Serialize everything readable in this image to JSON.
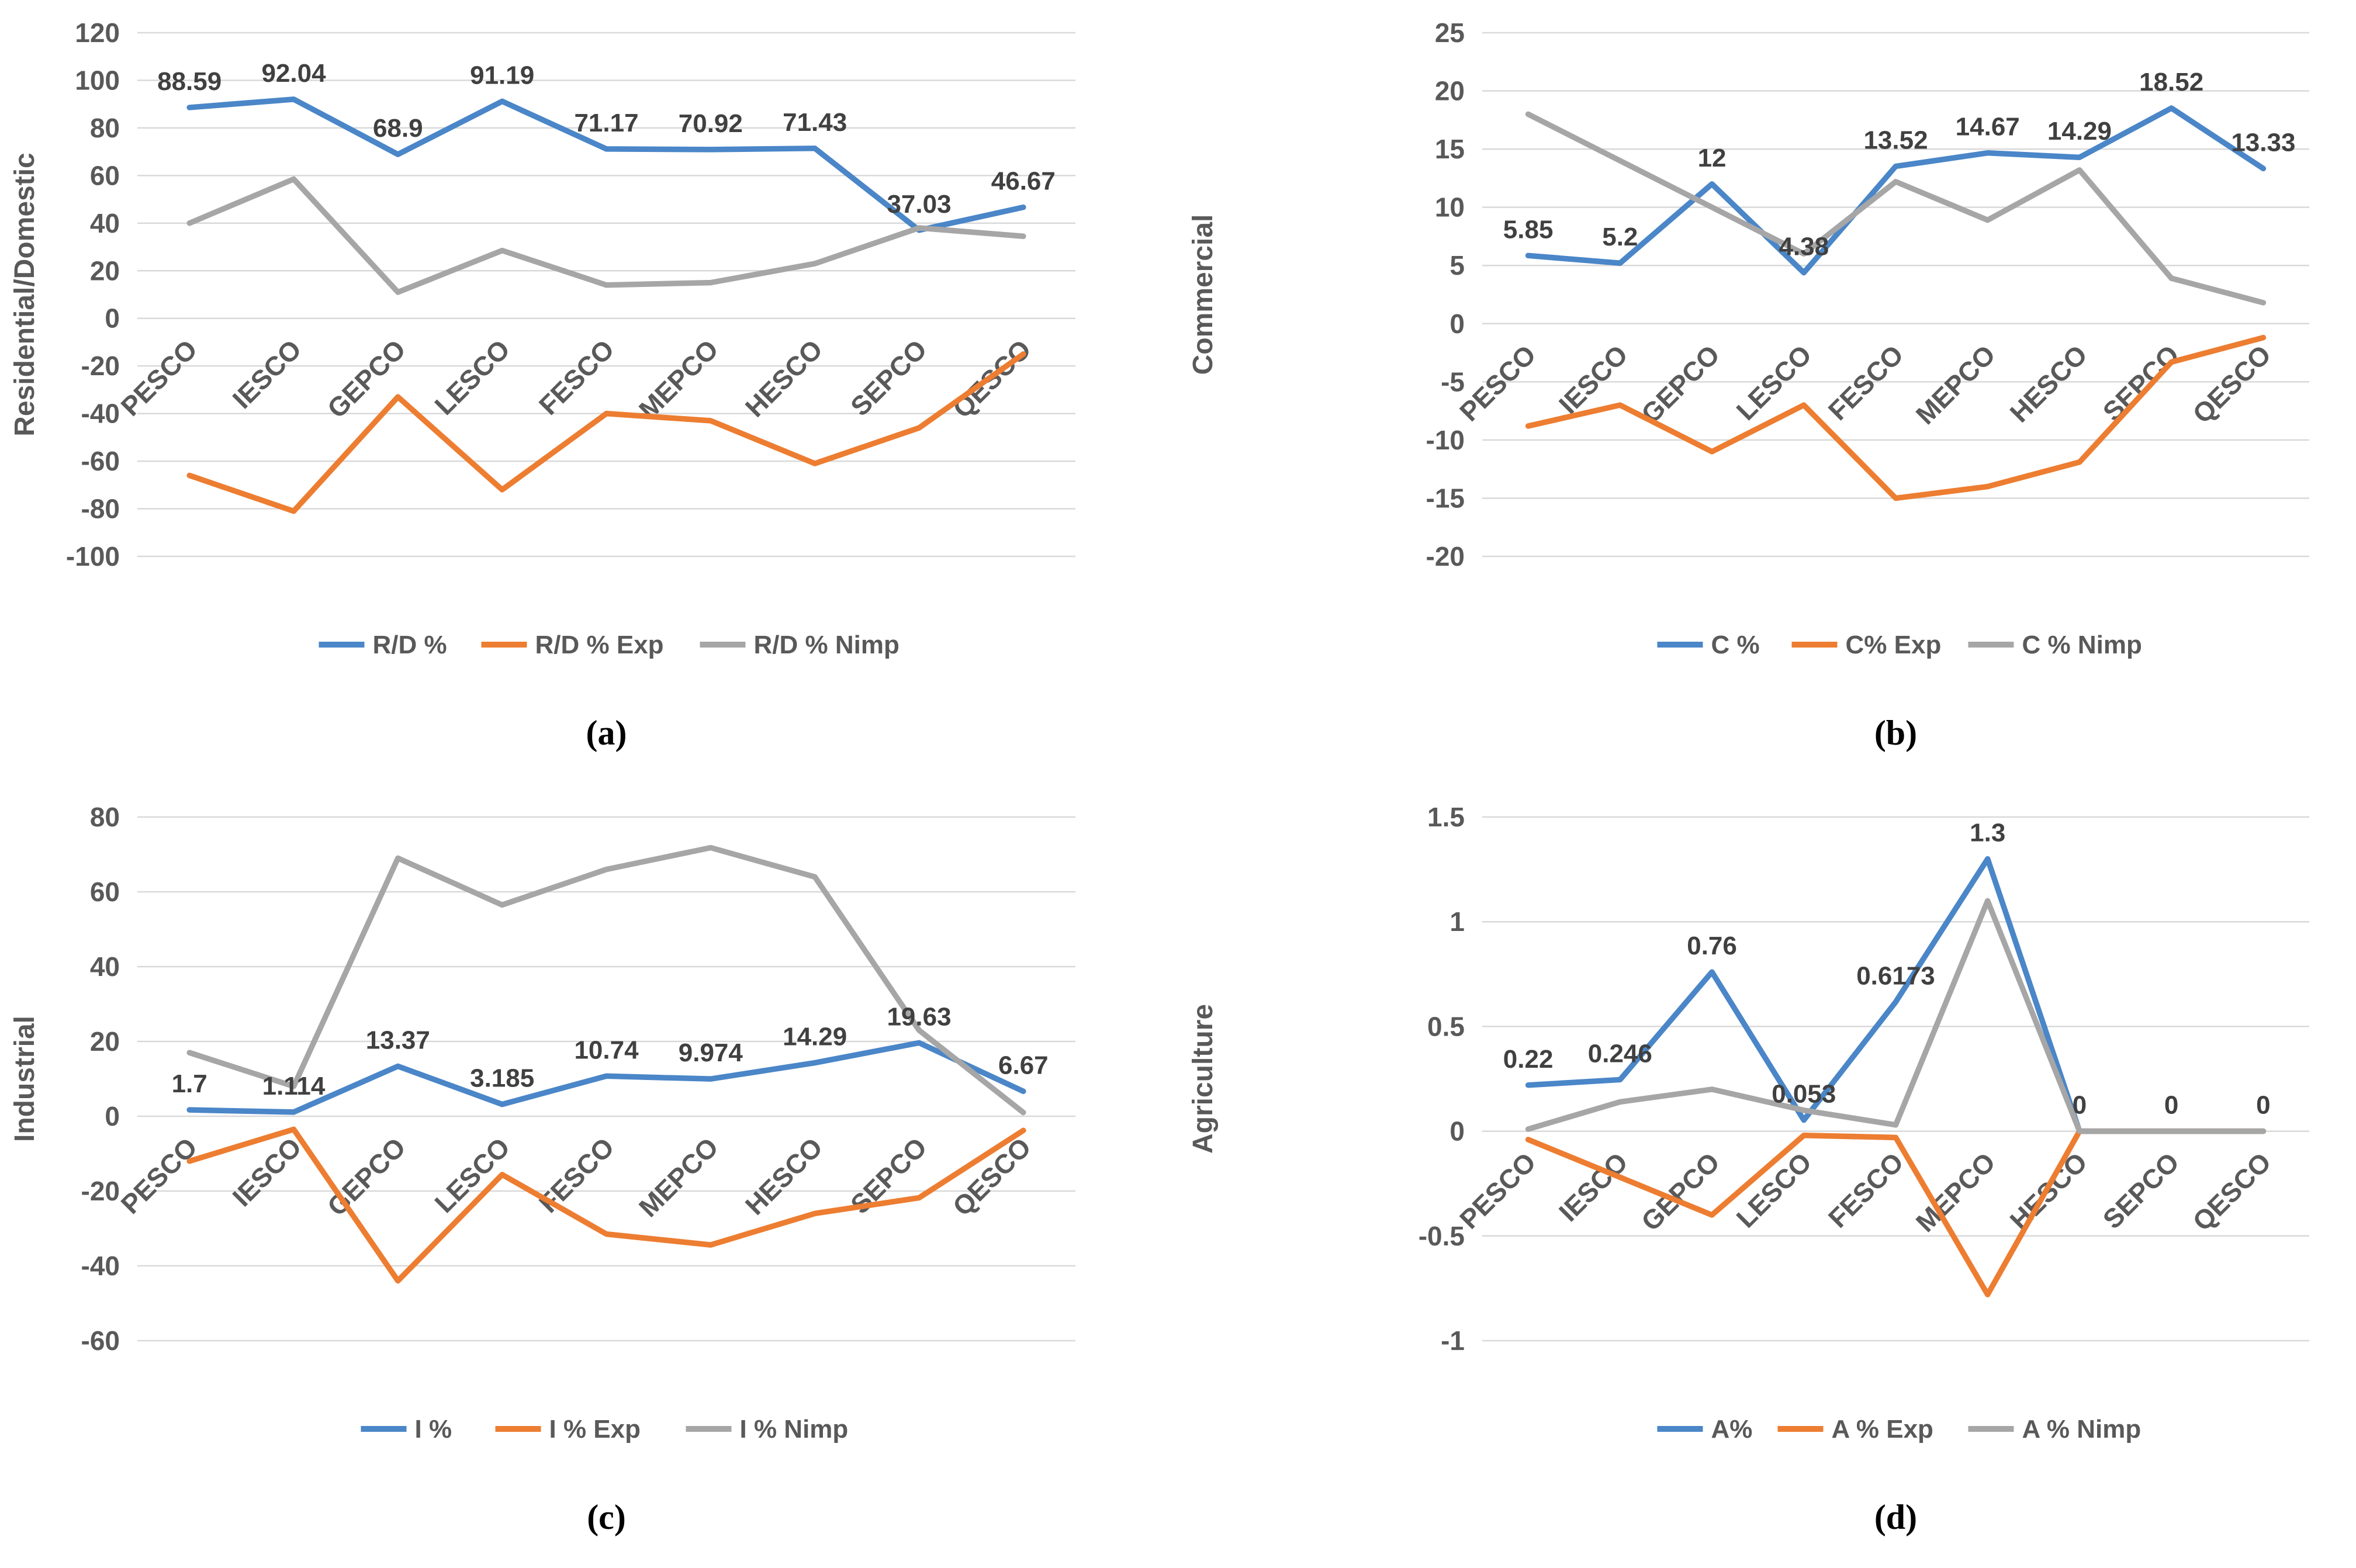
{
  "page": {
    "background": "#ffffff"
  },
  "colors": {
    "blue": "#4A86C8",
    "orange": "#ED7D31",
    "gray": "#A6A6A6",
    "gridline": "#D9D9D9",
    "axis_text": "#595959",
    "data_label": "#404040",
    "legend_text": "#595959"
  },
  "categories": [
    "PESCO",
    "IESCO",
    "GEPCO",
    "LESCO",
    "FESCO",
    "MEPCO",
    "HESCO",
    "SEPCO",
    "QESCO"
  ],
  "chart_data": [
    {
      "type": "line",
      "caption": "(a)",
      "ylabel": "Residential/Domestic",
      "ylim": [
        -100,
        120
      ],
      "ytick_step": 20,
      "grid": true,
      "legend_position": "bottom",
      "categories": [
        "PESCO",
        "IESCO",
        "GEPCO",
        "LESCO",
        "FESCO",
        "MEPCO",
        "HESCO",
        "SEPCO",
        "QESCO"
      ],
      "series": [
        {
          "name": "R/D %",
          "color": "blue",
          "values": [
            88.59,
            92.04,
            68.9,
            91.19,
            71.17,
            70.92,
            71.43,
            37.03,
            46.67
          ],
          "labels": [
            "88.59",
            "92.04",
            "68.9",
            "91.19",
            "71.17",
            "70.92",
            "71.43",
            "37.03",
            "46.67"
          ]
        },
        {
          "name": "R/D % Exp",
          "color": "orange",
          "values": [
            -66,
            -81,
            -33,
            -72,
            -40,
            -43,
            -61,
            -46,
            -15
          ]
        },
        {
          "name": "R/D % Nimp",
          "color": "gray",
          "values": [
            40,
            58.5,
            11,
            28.5,
            14,
            15,
            23,
            38,
            34.5
          ]
        }
      ]
    },
    {
      "type": "line",
      "caption": "(b)",
      "ylabel": "Commercial",
      "ylim": [
        -20,
        25
      ],
      "ytick_step": 5,
      "grid": true,
      "legend_position": "bottom",
      "categories": [
        "PESCO",
        "IESCO",
        "GEPCO",
        "LESCO",
        "FESCO",
        "MEPCO",
        "HESCO",
        "SEPCO",
        "QESCO"
      ],
      "series": [
        {
          "name": "C %",
          "color": "blue",
          "values": [
            5.85,
            5.2,
            12,
            4.38,
            13.52,
            14.67,
            14.29,
            18.52,
            13.33
          ],
          "labels": [
            "5.85",
            "5.2",
            "12",
            "4.38",
            "13.52",
            "14.67",
            "14.29",
            "18.52",
            "13.33"
          ]
        },
        {
          "name": "C% Exp",
          "color": "orange",
          "values": [
            -8.8,
            -7,
            -11,
            -7,
            -15,
            -14,
            -11.9,
            -3.3,
            -1.2
          ]
        },
        {
          "name": "C % Nimp",
          "color": "gray",
          "values": [
            18,
            14,
            10,
            6,
            12.2,
            8.9,
            13.2,
            3.9,
            1.8
          ]
        }
      ]
    },
    {
      "type": "line",
      "caption": "(c)",
      "ylabel": "Industrial",
      "ylim": [
        -60,
        80
      ],
      "ytick_step": 20,
      "grid": true,
      "legend_position": "bottom",
      "categories": [
        "PESCO",
        "IESCO",
        "GEPCO",
        "LESCO",
        "FESCO",
        "MEPCO",
        "HESCO",
        "SEPCO",
        "QESCO"
      ],
      "series": [
        {
          "name": "I %",
          "color": "blue",
          "values": [
            1.7,
            1.114,
            13.37,
            3.185,
            10.74,
            9.974,
            14.29,
            19.63,
            6.67
          ],
          "labels": [
            "1.7",
            "1.114",
            "13.37",
            "3.185",
            "10.74",
            "9.974",
            "14.29",
            "19.63",
            "6.67"
          ]
        },
        {
          "name": "I % Exp",
          "color": "orange",
          "values": [
            -12,
            -3.5,
            -44,
            -15.6,
            -31.5,
            -34.4,
            -26,
            -21.8,
            -3.8
          ]
        },
        {
          "name": "I % Nimp",
          "color": "gray",
          "values": [
            17,
            8,
            69,
            56.5,
            66,
            71.8,
            64,
            23,
            1
          ]
        }
      ]
    },
    {
      "type": "line",
      "caption": "(d)",
      "ylabel": "Agriculture",
      "ylim": [
        -1,
        1.5
      ],
      "ytick_step": 0.5,
      "grid": true,
      "legend_position": "bottom",
      "categories": [
        "PESCO",
        "IESCO",
        "GEPCO",
        "LESCO",
        "FESCO",
        "MEPCO",
        "HESCO",
        "SEPCO",
        "QESCO"
      ],
      "series": [
        {
          "name": "A%",
          "color": "blue",
          "values": [
            0.22,
            0.246,
            0.76,
            0.053,
            0.6173,
            1.3,
            0,
            0,
            0
          ],
          "labels": [
            "0.22",
            "0.246",
            "0.76",
            "0.053",
            "0.6173",
            "1.3",
            "0",
            "0",
            "0"
          ]
        },
        {
          "name": "A % Exp",
          "color": "orange",
          "values": [
            -0.04,
            -0.22,
            -0.4,
            -0.02,
            -0.03,
            -0.78,
            0,
            0,
            0
          ]
        },
        {
          "name": "A % Nimp",
          "color": "gray",
          "values": [
            0.01,
            0.14,
            0.2,
            0.1,
            0.03,
            1.1,
            0,
            0,
            0
          ]
        }
      ]
    }
  ]
}
